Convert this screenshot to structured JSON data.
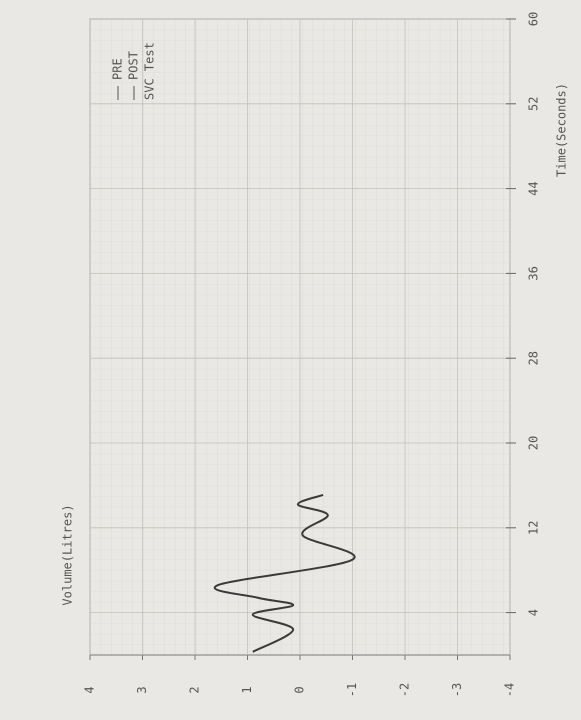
{
  "chart_data": {
    "type": "line",
    "x_label": "Time(Seconds)",
    "y_label": "Volume(Litres)",
    "legend_entries": [
      "PRE",
      "POST"
    ],
    "legend_title": "SVC Test",
    "x": [
      0.3,
      2.4,
      3.8,
      4.7,
      5.4,
      6.6,
      9.0,
      11.3,
      13.2,
      14.2,
      15.1
    ],
    "series": [
      {
        "name": "PRE",
        "color": "#3a3a3a",
        "values": [
          0.9,
          0.13,
          0.9,
          0.13,
          0.8,
          1.56,
          -1.0,
          -0.05,
          -0.53,
          0.04,
          -0.44
        ]
      }
    ],
    "xlim": [
      0,
      60
    ],
    "xticks": [
      4,
      12,
      20,
      28,
      36,
      44,
      52,
      60
    ],
    "ylim": [
      -4,
      4
    ],
    "yticks": [
      4,
      3,
      2,
      1,
      0,
      -1,
      -2,
      -3,
      -4
    ],
    "grid": true
  }
}
